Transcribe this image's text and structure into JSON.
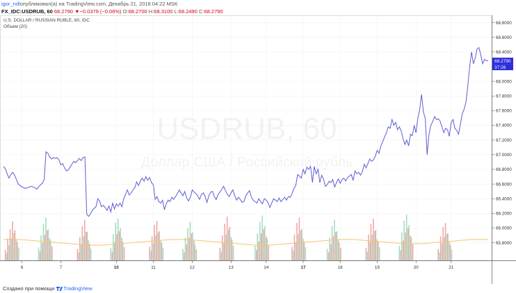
{
  "header": {
    "user": "igor_ndl",
    "published": "опубликовал(а) на TradingView.com, Декабрь 21, 2018 04:22 MSK"
  },
  "symbol_bar": {
    "symbol": "FX_IDC:USDRUB, 60",
    "last": "68.2790",
    "change": "−0.0379 (−0.06%)",
    "o_label": "O:",
    "o": "68.2700",
    "h_label": "H:",
    "h": "68.3100",
    "l_label": "L:",
    "l": "68.2490",
    "c_label": "C:",
    "c": "68.2790"
  },
  "footer": {
    "created": "Создано при помощи",
    "brand": "TradingView"
  },
  "colors": {
    "line": "#5b5bd6",
    "vol_up": "#a6dcc2",
    "vol_down": "#f2a7a7",
    "vol_ma": "#f5c56b",
    "price_label": "#2c2cd9"
  },
  "chart_data": {
    "type": "line",
    "title": "U.S. DOLLAR / RUSSIAN RUBLE, 60, IDC",
    "volume_label": "Объем (20)",
    "watermark_symbol": "USDRUB, 60",
    "watermark_name": "Доллар США / Российский рубль",
    "ylim": [
      65.56,
      68.9
    ],
    "y_ticks": [
      "65.8000",
      "66.0000",
      "66.2000",
      "66.4000",
      "66.6000",
      "66.8000",
      "67.0000",
      "67.2000",
      "67.4000",
      "67.6000",
      "67.8000",
      "68.0000",
      "68.2000",
      "68.4000",
      "68.6000",
      "68.8000"
    ],
    "last_price_label": "68.2790",
    "countdown_label": "37:26",
    "x_ticks": [
      {
        "label": "6",
        "bold": false
      },
      {
        "label": "7",
        "bold": false
      },
      {
        "label": "10",
        "bold": true
      },
      {
        "label": "11",
        "bold": false
      },
      {
        "label": "12",
        "bold": false
      },
      {
        "label": "13",
        "bold": false
      },
      {
        "label": "14",
        "bold": false
      },
      {
        "label": "17",
        "bold": true
      },
      {
        "label": "18",
        "bold": false
      },
      {
        "label": "19",
        "bold": false
      },
      {
        "label": "20",
        "bold": false
      },
      {
        "label": "21",
        "bold": false
      }
    ],
    "x_tick_index": [
      10,
      31,
      61,
      81,
      102,
      123,
      142,
      162,
      182,
      202,
      223,
      242
    ],
    "price_series": [
      {
        "name": "Close",
        "values": [
          66.84,
          66.81,
          66.74,
          66.68,
          66.73,
          66.76,
          66.72,
          66.66,
          66.6,
          66.58,
          66.56,
          66.55,
          66.54,
          66.55,
          66.56,
          66.57,
          66.56,
          66.55,
          66.53,
          66.56,
          66.59,
          66.61,
          66.66,
          67.04,
          67.02,
          66.97,
          66.94,
          66.96,
          66.95,
          66.96,
          66.93,
          66.86,
          66.88,
          66.82,
          66.78,
          66.79,
          66.83,
          66.87,
          66.91,
          66.89,
          66.92,
          66.95,
          66.92,
          66.96,
          66.97,
          66.19,
          66.16,
          66.19,
          66.24,
          66.27,
          66.29,
          66.4,
          66.37,
          66.29,
          66.31,
          66.28,
          66.24,
          66.3,
          66.22,
          66.34,
          66.26,
          66.33,
          66.3,
          66.34,
          66.29,
          66.4,
          66.46,
          66.52,
          66.45,
          66.48,
          66.52,
          66.55,
          66.63,
          66.58,
          66.64,
          66.68,
          66.64,
          66.7,
          66.65,
          66.69,
          66.62,
          66.59,
          66.39,
          66.43,
          66.36,
          66.34,
          66.38,
          66.25,
          66.33,
          66.38,
          66.36,
          66.42,
          66.39,
          66.43,
          66.47,
          66.52,
          66.48,
          66.44,
          66.5,
          66.41,
          66.37,
          66.42,
          66.52,
          66.49,
          66.47,
          66.44,
          66.39,
          66.46,
          66.48,
          66.43,
          66.35,
          66.44,
          66.49,
          66.5,
          66.43,
          66.39,
          66.46,
          66.49,
          66.53,
          66.57,
          66.51,
          66.46,
          66.43,
          66.48,
          66.52,
          66.44,
          66.38,
          66.42,
          66.39,
          66.35,
          66.36,
          66.44,
          66.48,
          66.51,
          66.42,
          66.38,
          66.36,
          66.34,
          66.4,
          66.36,
          66.33,
          66.4,
          66.38,
          66.35,
          66.28,
          66.34,
          66.4,
          66.38,
          66.36,
          66.41,
          66.36,
          66.39,
          66.42,
          66.38,
          66.43,
          66.42,
          66.47,
          66.54,
          66.58,
          66.73,
          66.71,
          66.68,
          66.8,
          66.74,
          66.83,
          66.8,
          66.84,
          66.62,
          66.84,
          66.74,
          66.8,
          66.62,
          66.72,
          66.67,
          66.57,
          66.59,
          66.64,
          66.62,
          66.66,
          66.56,
          66.62,
          66.67,
          66.61,
          66.66,
          66.68,
          66.64,
          66.69,
          66.71,
          66.73,
          66.65,
          66.78,
          66.74,
          66.76,
          66.72,
          66.77,
          66.87,
          66.82,
          66.88,
          66.94,
          66.91,
          66.93,
          66.98,
          67.06,
          67.02,
          67.12,
          67.18,
          67.24,
          67.3,
          67.38,
          67.36,
          67.48,
          67.4,
          67.44,
          67.34,
          67.38,
          67.32,
          67.22,
          67.14,
          67.2,
          67.12,
          67.28,
          67.26,
          67.4,
          67.3,
          67.5,
          67.62,
          67.82,
          67.58,
          67.5,
          67.0,
          67.28,
          67.4,
          67.45,
          67.52,
          67.48,
          67.49,
          67.46,
          67.38,
          67.3,
          67.36,
          67.34,
          67.25,
          67.44,
          67.48,
          67.36,
          67.33,
          67.28,
          67.42,
          67.56,
          67.62,
          67.72,
          67.94,
          68.2,
          68.4,
          68.24,
          68.32,
          68.44,
          68.46,
          68.36,
          68.24,
          68.3,
          68.28,
          68.28
        ]
      }
    ],
    "volume": {
      "name": "Объем (20)",
      "bars_per_segment": 6,
      "segment_start_index": [
        1,
        19,
        40,
        58,
        79,
        97,
        117,
        136,
        156,
        175,
        196,
        214,
        235
      ],
      "segment_direction": [
        "down",
        "up",
        "down",
        "up",
        "down",
        "up",
        "down",
        "up",
        "down",
        "up",
        "down",
        "up",
        "down"
      ],
      "bar_values": [
        [
          20,
          42,
          60,
          75,
          58,
          35
        ],
        [
          25,
          48,
          70,
          82,
          60,
          38
        ],
        [
          22,
          45,
          66,
          78,
          55,
          32
        ],
        [
          24,
          50,
          72,
          80,
          62,
          36
        ],
        [
          26,
          46,
          68,
          76,
          56,
          34
        ],
        [
          22,
          44,
          62,
          74,
          54,
          30
        ],
        [
          24,
          48,
          70,
          84,
          64,
          40
        ],
        [
          28,
          52,
          74,
          86,
          66,
          42
        ],
        [
          26,
          50,
          72,
          82,
          60,
          36
        ],
        [
          22,
          44,
          66,
          78,
          56,
          34
        ],
        [
          24,
          50,
          70,
          80,
          58,
          36
        ],
        [
          28,
          54,
          76,
          88,
          68,
          44
        ],
        [
          22,
          46,
          64,
          72,
          52,
          30
        ]
      ],
      "ma_values": [
        30,
        30,
        28,
        26,
        24,
        22,
        22,
        24,
        26,
        28,
        30,
        30,
        28,
        26,
        24,
        22,
        22,
        24,
        26,
        28,
        30,
        30,
        28,
        26,
        24,
        24,
        26,
        28,
        30,
        30
      ]
    }
  }
}
